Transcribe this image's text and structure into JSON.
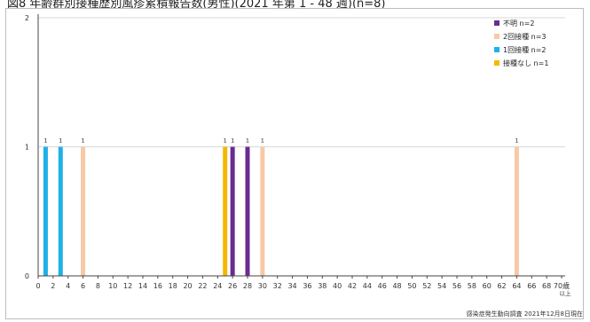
{
  "title": "図8 年齢群別接種歴別風疹累積報告数(男性)(2021 年第 1 - 48 週)(n=8)",
  "source": "感染症発生動向調査 2021年12月8日現在",
  "colors": {
    "unknown": "#6a2c91",
    "two_doses": "#f7c9a6",
    "one_dose": "#1fb1e6",
    "none": "#f5b800",
    "grid": "#d9d9d9",
    "axis": "#444444"
  },
  "chart_data": {
    "type": "bar",
    "stacked": true,
    "title": "図8 年齢群別接種歴別風疹累積報告数(男性)(2021 年第 1 - 48 週)(n=8)",
    "xlabel": "",
    "ylabel": "",
    "ylim": [
      0,
      2
    ],
    "yticks": [
      "0",
      "1",
      "2"
    ],
    "x_ticks": [
      "0",
      "2",
      "4",
      "6",
      "8",
      "10",
      "12",
      "14",
      "16",
      "18",
      "20",
      "22",
      "24",
      "26",
      "28",
      "30",
      "32",
      "34",
      "36",
      "38",
      "40",
      "42",
      "44",
      "46",
      "48",
      "50",
      "52",
      "54",
      "56",
      "58",
      "60",
      "62",
      "64",
      "66",
      "68",
      "70歳\n以上"
    ],
    "grid": true,
    "legend_position": "top-right",
    "legend": [
      {
        "label": "不明 n=2",
        "color": "#6a2c91"
      },
      {
        "label": "2回接種 n=3",
        "color": "#f7c9a6"
      },
      {
        "label": "1回接種 n=2",
        "color": "#1fb1e6"
      },
      {
        "label": "接種なし n=1",
        "color": "#f5b800"
      }
    ],
    "series": [
      {
        "name": "不明 n=2",
        "color": "#6a2c91",
        "points": [
          {
            "age": 26,
            "value": 1
          },
          {
            "age": 28,
            "value": 1
          }
        ]
      },
      {
        "name": "2回接種 n=3",
        "color": "#f7c9a6",
        "points": [
          {
            "age": 6,
            "value": 1
          },
          {
            "age": 30,
            "value": 1
          },
          {
            "age": 64,
            "value": 1
          }
        ]
      },
      {
        "name": "1回接種 n=2",
        "color": "#1fb1e6",
        "points": [
          {
            "age": 1,
            "value": 1
          },
          {
            "age": 3,
            "value": 1
          }
        ]
      },
      {
        "name": "接種なし n=1",
        "color": "#f5b800",
        "points": [
          {
            "age": 25,
            "value": 1
          }
        ]
      }
    ],
    "data_labels": [
      {
        "age": 1,
        "text": "1"
      },
      {
        "age": 3,
        "text": "1"
      },
      {
        "age": 6,
        "text": "1"
      },
      {
        "age": 25,
        "text": "1"
      },
      {
        "age": 26,
        "text": "1"
      },
      {
        "age": 28,
        "text": "1"
      },
      {
        "age": 30,
        "text": "1"
      },
      {
        "age": 64,
        "text": "1"
      }
    ]
  }
}
